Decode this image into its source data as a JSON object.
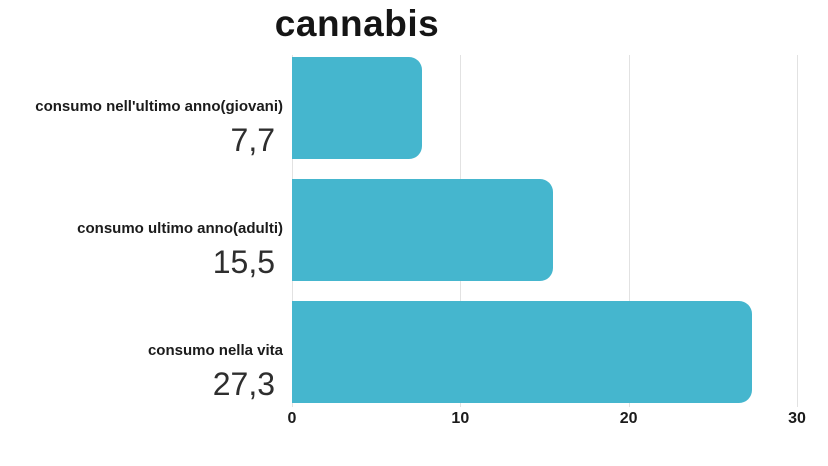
{
  "chart_data": {
    "type": "bar",
    "orientation": "horizontal",
    "title": "cannabis",
    "categories": [
      "consumo nell'ultimo anno(giovani)",
      "consumo ultimo anno(adulti)",
      "consumo nella vita"
    ],
    "values": [
      7.7,
      15.5,
      27.3
    ],
    "value_labels": [
      "7,7",
      "15,5",
      "27,3"
    ],
    "xlabel": "",
    "ylabel": "",
    "xlim": [
      0,
      30
    ],
    "x_ticks": [
      0,
      10,
      20,
      30
    ],
    "x_tick_labels": [
      "0",
      "10",
      "20",
      "30"
    ],
    "grid": true,
    "legend": false,
    "colors": {
      "bar": "#45B6CE",
      "gridline": "#e2e2e2",
      "title_text": "#151515",
      "label_text": "#1b1b1b",
      "value_text": "#2e2e2e",
      "background": "#ffffff"
    }
  }
}
